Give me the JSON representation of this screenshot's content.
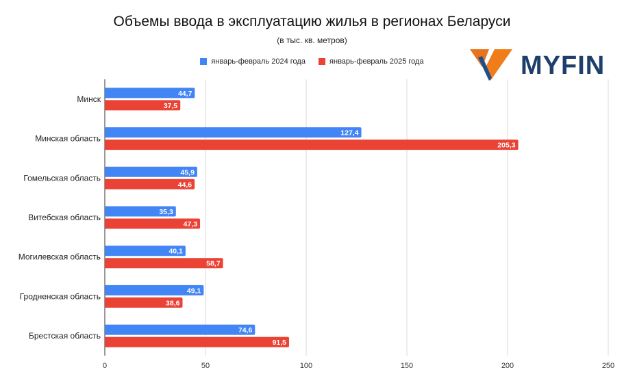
{
  "chart_data": {
    "type": "bar",
    "orientation": "horizontal",
    "title": "Объемы ввода в эксплуатацию жилья в регионах Беларуси",
    "subtitle": "(в тыс. кв. метров)",
    "categories": [
      "Минск",
      "Минская область",
      "Гомельская область",
      "Витебская область",
      "Могилевская область",
      "Гродненская область",
      "Брестская область"
    ],
    "series": [
      {
        "name": "январь-февраль 2024 года",
        "color": "#4285f4",
        "values": [
          44.7,
          127.4,
          45.9,
          35.3,
          40.1,
          49.1,
          74.6
        ],
        "labels": [
          "44,7",
          "127,4",
          "45,9",
          "35,3",
          "40,1",
          "49,1",
          "74,6"
        ]
      },
      {
        "name": "январь-февраль 2025 года",
        "color": "#ea4335",
        "values": [
          37.5,
          205.3,
          44.6,
          47.3,
          58.7,
          38.6,
          91.5
        ],
        "labels": [
          "37,5",
          "205,3",
          "44,6",
          "47,3",
          "58,7",
          "38,6",
          "91,5"
        ]
      }
    ],
    "xlim": [
      0,
      250
    ],
    "xticks": [
      "0",
      "50",
      "100",
      "150",
      "200",
      "250"
    ],
    "grid": true,
    "legend_position": "top"
  },
  "logo": {
    "text": "MYFIN",
    "mark_color_1": "#ff8000",
    "mark_color_2": "#1e4f8c"
  }
}
